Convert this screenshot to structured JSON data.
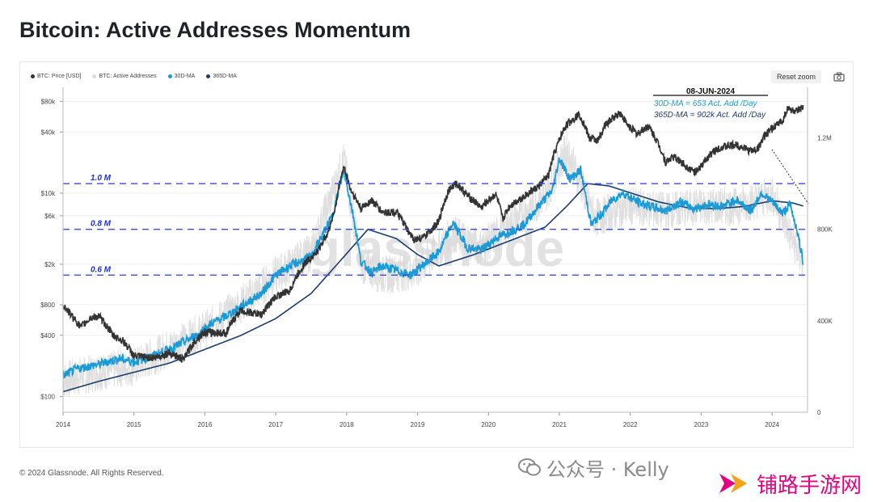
{
  "page_title": "Bitcoin: Active Addresses Momentum",
  "toolbar": {
    "reset_zoom": "Reset zoom"
  },
  "legend": [
    {
      "label": "BTC: Price [USD]",
      "color": "#333333"
    },
    {
      "label": "BTC: Active Addresses",
      "color": "#dddddd"
    },
    {
      "label": "30D-MA",
      "color": "#1a9bd7"
    },
    {
      "label": "365D-MA",
      "color": "#1b3d6d"
    }
  ],
  "annotation": {
    "date": "08-JUN-2024",
    "line1": "30D-MA = 653 Act. Add /Day",
    "line2": "365D-MA = 902k  Act. Add /Day"
  },
  "watermark": "glassnode",
  "footer": "© 2024 Glassnode. All Rights Reserved.",
  "wechat_mark": "公众号 · Kelly",
  "site_mark": "铺路手游网",
  "colors": {
    "price": "#333333",
    "active": "#d9d9d9",
    "ma30": "#1a9bd7",
    "ma365": "#1b3d6d",
    "threshold": "#3a4de0",
    "threshold_label": "#1f2fd6"
  },
  "chart_data": {
    "type": "line",
    "title": "Bitcoin: Active Addresses Momentum",
    "x_ticks": [
      "2014",
      "2015",
      "2016",
      "2017",
      "2018",
      "2019",
      "2020",
      "2021",
      "2022",
      "2023",
      "2024"
    ],
    "y_left": {
      "scale": "log",
      "ticks": [
        {
          "label": "$100",
          "value": 100
        },
        {
          "label": "$400",
          "value": 400
        },
        {
          "label": "$800",
          "value": 800
        },
        {
          "label": "$2k",
          "value": 2000
        },
        {
          "label": "$6k",
          "value": 6000
        },
        {
          "label": "$10k",
          "value": 10000
        },
        {
          "label": "$40k",
          "value": 40000
        },
        {
          "label": "$80k",
          "value": 80000
        }
      ]
    },
    "y_right": {
      "scale": "linear",
      "range": [
        0,
        1400000
      ],
      "ticks": [
        {
          "label": "0",
          "value": 0
        },
        {
          "label": "400K",
          "value": 400000
        },
        {
          "label": "800K",
          "value": 800000
        },
        {
          "label": "1.2M",
          "value": 1200000
        }
      ]
    },
    "thresholds": [
      {
        "label": "1.0 M",
        "value": 1000000
      },
      {
        "label": "0.8 M",
        "value": 800000
      },
      {
        "label": "0.6 M",
        "value": 600000
      }
    ],
    "series": [
      {
        "name": "BTC: Price [USD]",
        "axis": "left",
        "points": [
          [
            2014.0,
            800
          ],
          [
            2014.1,
            650
          ],
          [
            2014.25,
            480
          ],
          [
            2014.4,
            600
          ],
          [
            2014.5,
            620
          ],
          [
            2014.7,
            400
          ],
          [
            2014.85,
            350
          ],
          [
            2015.0,
            250
          ],
          [
            2015.3,
            240
          ],
          [
            2015.5,
            270
          ],
          [
            2015.7,
            230
          ],
          [
            2015.9,
            380
          ],
          [
            2016.0,
            430
          ],
          [
            2016.3,
            420
          ],
          [
            2016.5,
            700
          ],
          [
            2016.8,
            640
          ],
          [
            2017.0,
            960
          ],
          [
            2017.2,
            1100
          ],
          [
            2017.4,
            2000
          ],
          [
            2017.6,
            2700
          ],
          [
            2017.75,
            4300
          ],
          [
            2017.85,
            7500
          ],
          [
            2017.96,
            18000
          ],
          [
            2018.05,
            11000
          ],
          [
            2018.1,
            9500
          ],
          [
            2018.2,
            7000
          ],
          [
            2018.35,
            8500
          ],
          [
            2018.5,
            6500
          ],
          [
            2018.7,
            6500
          ],
          [
            2018.88,
            4000
          ],
          [
            2018.96,
            3500
          ],
          [
            2019.1,
            3700
          ],
          [
            2019.3,
            5200
          ],
          [
            2019.45,
            11000
          ],
          [
            2019.55,
            12500
          ],
          [
            2019.7,
            9500
          ],
          [
            2019.9,
            7200
          ],
          [
            2020.0,
            8500
          ],
          [
            2020.1,
            9800
          ],
          [
            2020.2,
            5500
          ],
          [
            2020.3,
            7500
          ],
          [
            2020.5,
            9300
          ],
          [
            2020.7,
            11500
          ],
          [
            2020.85,
            15000
          ],
          [
            2020.96,
            28000
          ],
          [
            2021.1,
            47000
          ],
          [
            2021.28,
            60000
          ],
          [
            2021.42,
            35000
          ],
          [
            2021.55,
            33000
          ],
          [
            2021.65,
            47000
          ],
          [
            2021.85,
            62000
          ],
          [
            2021.96,
            47000
          ],
          [
            2022.1,
            38000
          ],
          [
            2022.25,
            46000
          ],
          [
            2022.4,
            30000
          ],
          [
            2022.5,
            20000
          ],
          [
            2022.6,
            23000
          ],
          [
            2022.75,
            19500
          ],
          [
            2022.88,
            16500
          ],
          [
            2022.96,
            16500
          ],
          [
            2023.1,
            23000
          ],
          [
            2023.25,
            28000
          ],
          [
            2023.5,
            30000
          ],
          [
            2023.7,
            26000
          ],
          [
            2023.8,
            27500
          ],
          [
            2023.9,
            37000
          ],
          [
            2024.0,
            43000
          ],
          [
            2024.15,
            52000
          ],
          [
            2024.22,
            68000
          ],
          [
            2024.35,
            63000
          ],
          [
            2024.44,
            69000
          ]
        ]
      },
      {
        "name": "BTC: Active Addresses",
        "axis": "right",
        "points": [
          [
            2014.0,
            140000
          ],
          [
            2014.5,
            175000
          ],
          [
            2015.0,
            200000
          ],
          [
            2015.5,
            280000
          ],
          [
            2016.0,
            360000
          ],
          [
            2016.5,
            470000
          ],
          [
            2017.0,
            600000
          ],
          [
            2017.5,
            700000
          ],
          [
            2017.96,
            1100000
          ],
          [
            2018.2,
            650000
          ],
          [
            2018.5,
            600000
          ],
          [
            2019.0,
            620000
          ],
          [
            2019.5,
            780000
          ],
          [
            2019.9,
            720000
          ],
          [
            2020.3,
            820000
          ],
          [
            2020.8,
            950000
          ],
          [
            2021.1,
            1150000
          ],
          [
            2021.5,
            850000
          ],
          [
            2022.0,
            900000
          ],
          [
            2022.5,
            880000
          ],
          [
            2023.0,
            900000
          ],
          [
            2023.5,
            900000
          ],
          [
            2024.0,
            950000
          ],
          [
            2024.44,
            650000
          ]
        ]
      },
      {
        "name": "30D-MA",
        "axis": "right",
        "points": [
          [
            2014.0,
            160000
          ],
          [
            2014.2,
            190000
          ],
          [
            2014.5,
            210000
          ],
          [
            2014.8,
            235000
          ],
          [
            2015.0,
            220000
          ],
          [
            2015.3,
            250000
          ],
          [
            2015.6,
            290000
          ],
          [
            2015.9,
            340000
          ],
          [
            2016.1,
            390000
          ],
          [
            2016.3,
            420000
          ],
          [
            2016.5,
            460000
          ],
          [
            2016.8,
            520000
          ],
          [
            2017.0,
            600000
          ],
          [
            2017.2,
            640000
          ],
          [
            2017.5,
            680000
          ],
          [
            2017.8,
            860000
          ],
          [
            2017.96,
            1060000
          ],
          [
            2018.1,
            850000
          ],
          [
            2018.2,
            660000
          ],
          [
            2018.35,
            610000
          ],
          [
            2018.5,
            640000
          ],
          [
            2018.7,
            620000
          ],
          [
            2018.9,
            600000
          ],
          [
            2019.1,
            650000
          ],
          [
            2019.3,
            700000
          ],
          [
            2019.5,
            830000
          ],
          [
            2019.7,
            720000
          ],
          [
            2019.9,
            710000
          ],
          [
            2020.1,
            760000
          ],
          [
            2020.3,
            790000
          ],
          [
            2020.5,
            820000
          ],
          [
            2020.7,
            900000
          ],
          [
            2020.9,
            970000
          ],
          [
            2021.0,
            1110000
          ],
          [
            2021.15,
            1020000
          ],
          [
            2021.3,
            1060000
          ],
          [
            2021.45,
            820000
          ],
          [
            2021.6,
            870000
          ],
          [
            2021.75,
            930000
          ],
          [
            2021.9,
            960000
          ],
          [
            2022.1,
            920000
          ],
          [
            2022.3,
            900000
          ],
          [
            2022.5,
            880000
          ],
          [
            2022.7,
            920000
          ],
          [
            2022.9,
            890000
          ],
          [
            2023.1,
            910000
          ],
          [
            2023.3,
            900000
          ],
          [
            2023.5,
            930000
          ],
          [
            2023.7,
            880000
          ],
          [
            2023.85,
            960000
          ],
          [
            2024.0,
            920000
          ],
          [
            2024.15,
            870000
          ],
          [
            2024.25,
            910000
          ],
          [
            2024.35,
            800000
          ],
          [
            2024.44,
            653000
          ]
        ]
      },
      {
        "name": "365D-MA",
        "axis": "right",
        "points": [
          [
            2014.0,
            90000
          ],
          [
            2014.5,
            135000
          ],
          [
            2015.0,
            175000
          ],
          [
            2015.5,
            215000
          ],
          [
            2016.0,
            275000
          ],
          [
            2016.5,
            335000
          ],
          [
            2017.0,
            410000
          ],
          [
            2017.5,
            520000
          ],
          [
            2017.96,
            680000
          ],
          [
            2018.3,
            800000
          ],
          [
            2018.7,
            760000
          ],
          [
            2019.0,
            690000
          ],
          [
            2019.3,
            640000
          ],
          [
            2019.8,
            690000
          ],
          [
            2020.3,
            750000
          ],
          [
            2020.8,
            810000
          ],
          [
            2021.1,
            900000
          ],
          [
            2021.4,
            1000000
          ],
          [
            2021.7,
            990000
          ],
          [
            2022.0,
            960000
          ],
          [
            2022.4,
            920000
          ],
          [
            2022.8,
            895000
          ],
          [
            2023.2,
            890000
          ],
          [
            2023.6,
            900000
          ],
          [
            2024.0,
            925000
          ],
          [
            2024.3,
            915000
          ],
          [
            2024.44,
            902000
          ]
        ]
      }
    ]
  }
}
